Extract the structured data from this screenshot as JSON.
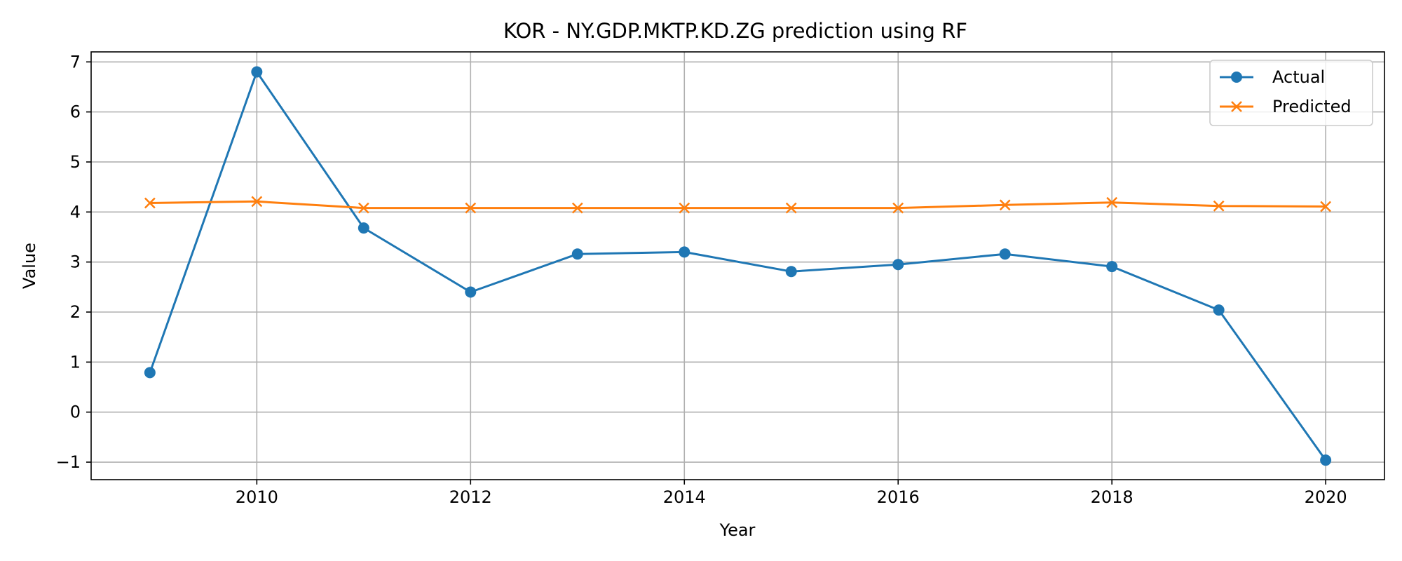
{
  "chart_data": {
    "type": "line",
    "title": "KOR - NY.GDP.MKTP.KD.ZG prediction using RF",
    "xlabel": "Year",
    "ylabel": "Value",
    "x": [
      2009,
      2010,
      2011,
      2012,
      2013,
      2014,
      2015,
      2016,
      2017,
      2018,
      2019,
      2020
    ],
    "xlim": [
      2008.45,
      2020.55
    ],
    "ylim": [
      -1.35,
      7.2
    ],
    "x_ticks": [
      2010,
      2012,
      2014,
      2016,
      2018,
      2020
    ],
    "x_tick_labels": [
      "2010",
      "2012",
      "2014",
      "2016",
      "2018",
      "2020"
    ],
    "y_ticks": [
      -1,
      0,
      1,
      2,
      3,
      4,
      5,
      6,
      7
    ],
    "y_tick_labels": [
      "−1",
      "0",
      "1",
      "2",
      "3",
      "4",
      "5",
      "6",
      "7"
    ],
    "grid": true,
    "legend_position": "top-right",
    "series": [
      {
        "name": "Actual",
        "marker": "circle",
        "color": "#1f77b4",
        "values": [
          0.79,
          6.8,
          3.68,
          2.4,
          3.16,
          3.2,
          2.81,
          2.95,
          3.16,
          2.91,
          2.04,
          -0.96
        ]
      },
      {
        "name": "Predicted",
        "marker": "x",
        "color": "#ff7f0e",
        "values": [
          4.18,
          4.21,
          4.08,
          4.08,
          4.08,
          4.08,
          4.08,
          4.08,
          4.14,
          4.19,
          4.12,
          4.11
        ]
      }
    ]
  }
}
